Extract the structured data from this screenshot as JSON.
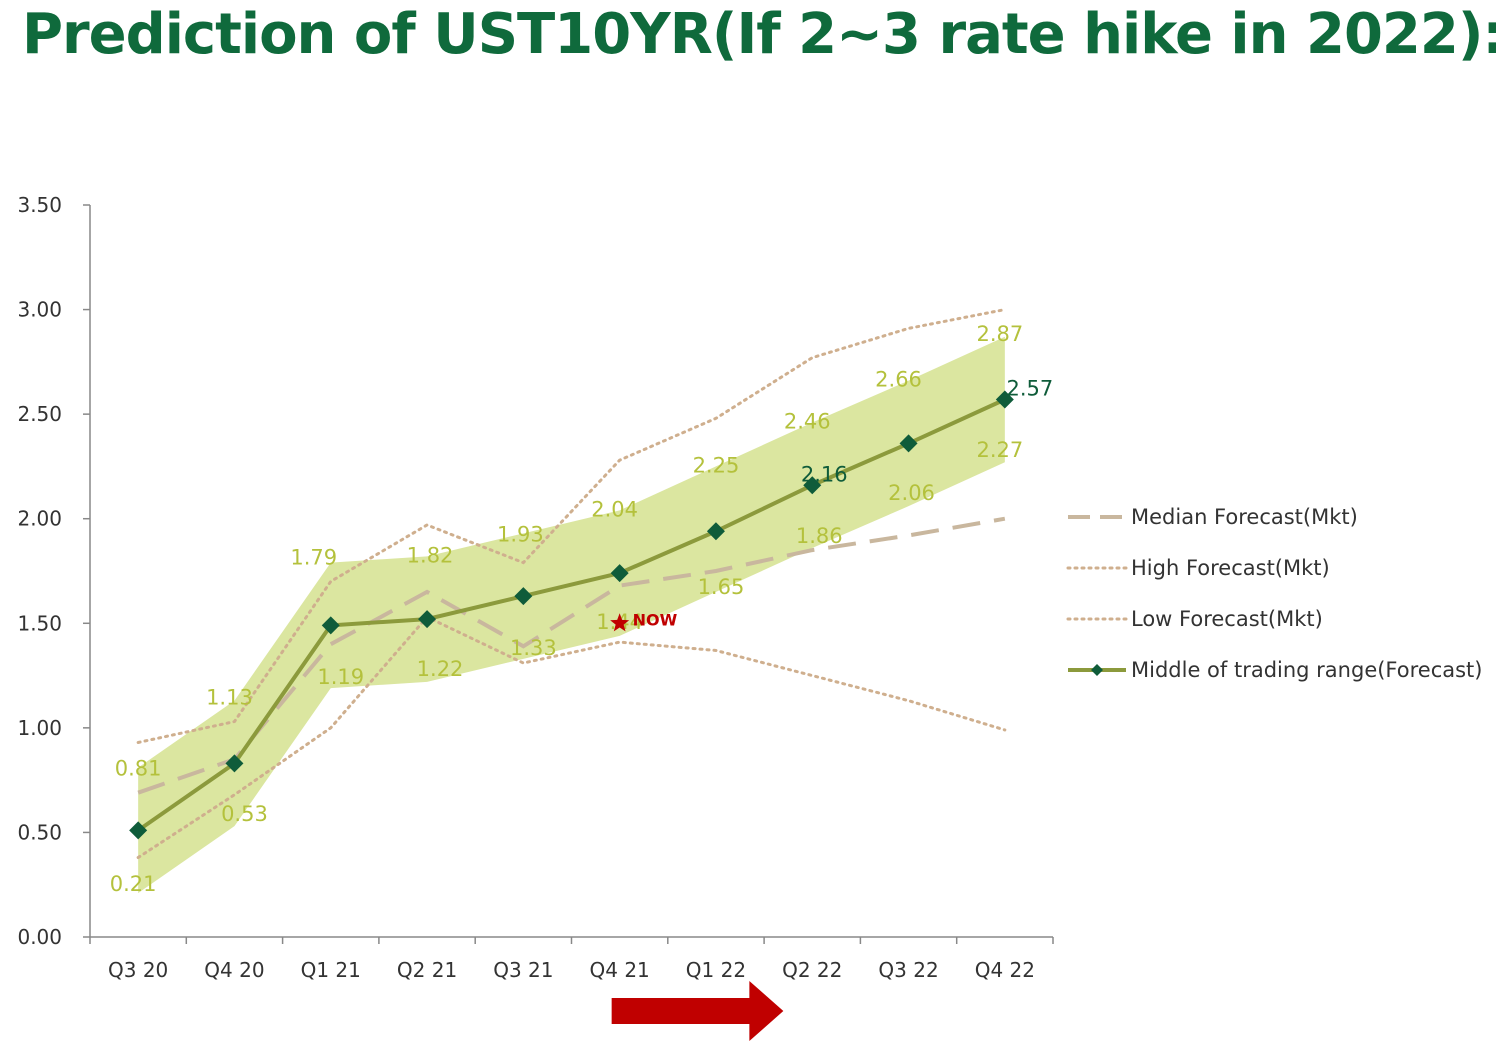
{
  "title": "Prediction of UST10YR(If 2~3 rate hike in 2022):",
  "colors": {
    "title": "#0f6a3c",
    "band": "#dbe6a0",
    "middle_line": "#8c9a3c",
    "marker": "#0f5c3a",
    "median": "#c9b79e",
    "dotted": "#cfaf8e",
    "label": "#b4c13c",
    "label_dark": "#0f5c3a",
    "now_star": "#c00000",
    "arrow": "#c00000",
    "axis": "#888888"
  },
  "chart_data": {
    "type": "line",
    "categories": [
      "Q3 20",
      "Q4 20",
      "Q1 21",
      "Q2 21",
      "Q3 21",
      "Q4 21",
      "Q1 22",
      "Q2 22",
      "Q3 22",
      "Q4 22"
    ],
    "ylim": [
      0,
      3.5
    ],
    "yticks": [
      "0.00",
      "0.50",
      "1.00",
      "1.50",
      "2.00",
      "2.50",
      "3.00",
      "3.50"
    ],
    "ytick_values": [
      0,
      0.5,
      1,
      1.5,
      2,
      2.5,
      3,
      3.5
    ],
    "grid": false,
    "legend_position": "right",
    "series": [
      {
        "name": "Median Forecast(Mkt)",
        "style": "dashed",
        "values": [
          0.69,
          0.85,
          1.4,
          1.65,
          1.39,
          1.68,
          1.75,
          1.85,
          1.92,
          2.0
        ]
      },
      {
        "name": "High Forecast(Mkt)",
        "style": "dotted",
        "values": [
          0.93,
          1.03,
          1.7,
          1.97,
          1.79,
          2.28,
          2.48,
          2.77,
          2.91,
          3.0
        ]
      },
      {
        "name": "Low Forecast(Mkt)",
        "style": "dotted",
        "values": [
          0.38,
          0.68,
          1.0,
          1.53,
          1.31,
          1.41,
          1.37,
          1.25,
          1.13,
          0.99
        ]
      },
      {
        "name": "Middle of trading range(Forecast)",
        "style": "solid-marker",
        "values": [
          0.51,
          0.83,
          1.49,
          1.52,
          1.63,
          1.74,
          1.94,
          2.16,
          2.36,
          2.57
        ]
      }
    ],
    "band": {
      "upper": [
        0.81,
        1.13,
        1.79,
        1.82,
        1.93,
        2.04,
        2.25,
        2.46,
        2.66,
        2.87
      ],
      "lower": [
        0.21,
        0.53,
        1.19,
        1.22,
        1.33,
        1.44,
        1.65,
        1.86,
        2.06,
        2.27
      ]
    },
    "data_labels": [
      {
        "text": "0.81",
        "cat": 0,
        "value": 0.81,
        "dx": 0,
        "dy": 0,
        "dark": false
      },
      {
        "text": "0.21",
        "cat": 0,
        "value": 0.21,
        "dx": -5,
        "dy": -10,
        "dark": false
      },
      {
        "text": "1.13",
        "cat": 1,
        "value": 1.13,
        "dx": -5,
        "dy": -4,
        "dark": false
      },
      {
        "text": "0.53",
        "cat": 1,
        "value": 0.53,
        "dx": 10,
        "dy": -13,
        "dark": false
      },
      {
        "text": "1.79",
        "cat": 2,
        "value": 1.79,
        "dx": -17,
        "dy": -6,
        "dark": false
      },
      {
        "text": "1.19",
        "cat": 2,
        "value": 1.19,
        "dx": 10,
        "dy": -12,
        "dark": false
      },
      {
        "text": "1.82",
        "cat": 3,
        "value": 1.82,
        "dx": 3,
        "dy": -2,
        "dark": false
      },
      {
        "text": "1.22",
        "cat": 3,
        "value": 1.22,
        "dx": 13,
        "dy": -14,
        "dark": false
      },
      {
        "text": "1.93",
        "cat": 4,
        "value": 1.93,
        "dx": -3,
        "dy": 0,
        "dark": false
      },
      {
        "text": "1.33",
        "cat": 4,
        "value": 1.33,
        "dx": 10,
        "dy": -12,
        "dark": false
      },
      {
        "text": "2.04",
        "cat": 5,
        "value": 2.04,
        "dx": -5,
        "dy": -2,
        "dark": false
      },
      {
        "text": "1.44",
        "cat": 5,
        "value": 1.44,
        "dx": 0,
        "dy": -15,
        "dark": false
      },
      {
        "text": "2.25",
        "cat": 6,
        "value": 2.25,
        "dx": 0,
        "dy": -2,
        "dark": false
      },
      {
        "text": "1.65",
        "cat": 6,
        "value": 1.65,
        "dx": 5,
        "dy": -6,
        "dark": false
      },
      {
        "text": "2.46",
        "cat": 7,
        "value": 2.46,
        "dx": -5,
        "dy": -2,
        "dark": false
      },
      {
        "text": "1.86",
        "cat": 7,
        "value": 1.86,
        "dx": 7,
        "dy": -13,
        "dark": false
      },
      {
        "text": "2.66",
        "cat": 8,
        "value": 2.66,
        "dx": -10,
        "dy": -2,
        "dark": false
      },
      {
        "text": "2.06",
        "cat": 8,
        "value": 2.06,
        "dx": 3,
        "dy": -14,
        "dark": false
      },
      {
        "text": "2.87",
        "cat": 9,
        "value": 2.87,
        "dx": -5,
        "dy": -4,
        "dark": false
      },
      {
        "text": "2.27",
        "cat": 9,
        "value": 2.27,
        "dx": -5,
        "dy": -13,
        "dark": false
      },
      {
        "text": "2.16",
        "cat": 7,
        "value": 2.16,
        "dx": 12,
        "dy": -12,
        "dark": true
      },
      {
        "text": "2.57",
        "cat": 9,
        "value": 2.57,
        "dx": 25,
        "dy": -12,
        "dark": true
      }
    ],
    "annotations": [
      {
        "text": "NOW",
        "cat": 5,
        "value": 1.5,
        "marker": "star"
      }
    ],
    "arrow": {
      "from_cat": 5,
      "to_cat": 6.7,
      "direction": "right"
    }
  }
}
